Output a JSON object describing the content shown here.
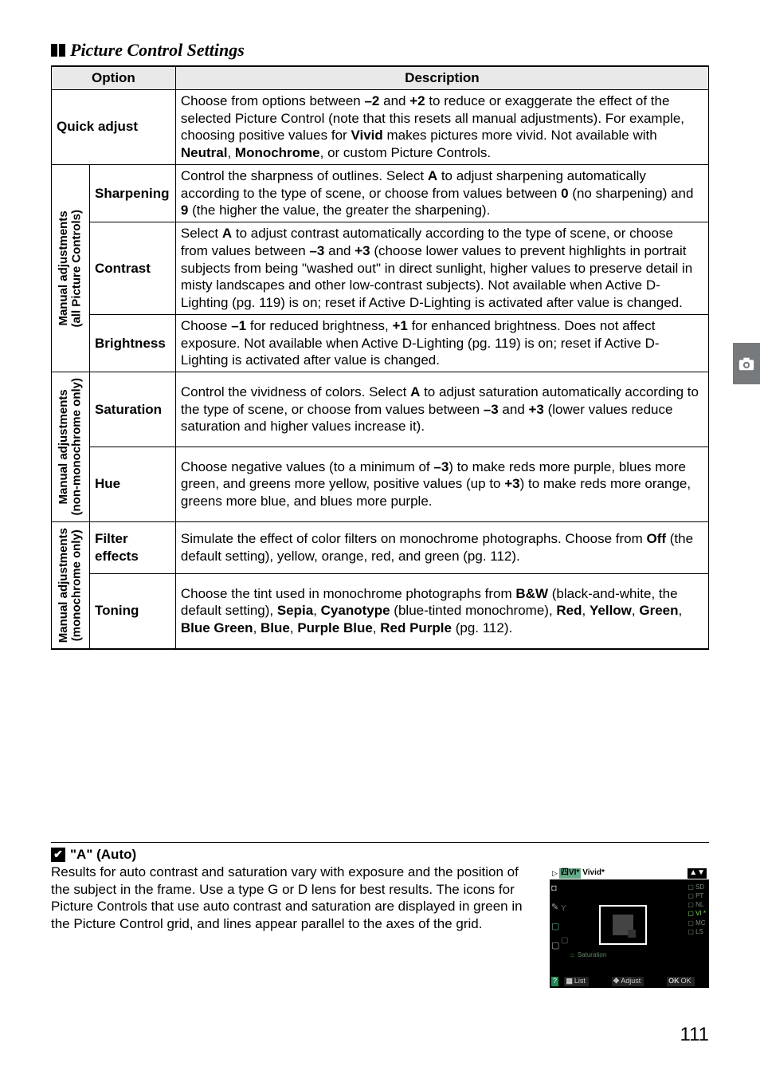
{
  "section_title": "Picture Control Settings",
  "headers": {
    "option": "Option",
    "description": "Description"
  },
  "quick_adjust": {
    "label": "Quick adjust",
    "desc": "Choose from options between <b>–2</b> and <b>+2</b> to reduce or exaggerate the effect of the selected Picture Control (note that this resets all manual adjustments). For example, choosing positive values for <b>Vivid</b> makes pictures more vivid. Not available with <b>Neutral</b>, <b>Monochrome</b>, or custom Picture Controls."
  },
  "group_all": {
    "label": "Manual adjustments\n(all Picture Controls)",
    "sharpening": {
      "label": "Sharpening",
      "desc": "Control the sharpness of outlines.  Select <b>A</b> to adjust sharpening automatically according to the type of scene, or choose from values between <b>0</b> (no sharpening) and <b>9</b> (the higher the value, the greater the sharpening)."
    },
    "contrast": {
      "label": "Contrast",
      "desc": "Select <b>A</b> to adjust contrast automatically according to the type of scene, or choose from values between <b>–3</b> and <b>+3</b> (choose lower values to prevent highlights in portrait subjects from being \"washed out\" in direct sunlight, higher values to preserve detail in misty landscapes and other low-contrast subjects).  Not available when Active D-Lighting (pg. 119) is on; reset if Active D-Lighting is activated after value is changed."
    },
    "brightness": {
      "label": "Brightness",
      "desc": "Choose <b>–1</b> for reduced brightness, <b>+1</b> for enhanced brightness.  Does not affect exposure.  Not available when Active D-Lighting (pg. 119) is on; reset if Active D-Lighting is activated after value is changed."
    }
  },
  "group_nonmono": {
    "label": "Manual adjustments\n(non-monochrome only)",
    "saturation": {
      "label": "Saturation",
      "desc": "Control the vividness of colors.  Select <b>A</b> to adjust saturation automatically according to the type of scene, or choose from values between <b>–3</b> and <b>+3</b> (lower values reduce saturation and higher values increase it)."
    },
    "hue": {
      "label": "Hue",
      "desc": "Choose negative values (to a minimum of <b>–3</b>) to make reds more purple, blues more green, and greens more yellow, positive values (up to <b>+3</b>) to make reds more orange, greens more blue, and blues more purple."
    }
  },
  "group_mono": {
    "label": "Manual adjustments\n(monochrome only)",
    "filter": {
      "label": "Filter effects",
      "desc": "Simulate the effect of color filters on monochrome photographs.  Choose from <b>Off</b> (the default setting), yellow, orange, red, and green (pg. 112)."
    },
    "toning": {
      "label": "Toning",
      "desc": "Choose the tint used in monochrome photographs from <b>B&amp;W</b> (black-and-white, the default setting), <b>Sepia</b>, <b>Cyanotype</b> (blue-tinted monochrome), <b>Red</b>, <b>Yellow</b>, <b>Green</b>, <b>Blue Green</b>, <b>Blue</b>, <b>Purple Blue</b>, <b>Red Purple</b> (pg. 112)."
    }
  },
  "note": {
    "title": "\"A\" (Auto)",
    "text": "Results for auto contrast and saturation vary with exposure and the position of the subject in the frame.  Use a type G or D lens for best results.  The icons for Picture Controls that use auto contrast and saturation are displayed in green in the Picture Control grid, and lines appear parallel to the axes of the grid."
  },
  "lcd": {
    "top_tag": "VI*",
    "top_label": "Vivid*",
    "arrow": "▲▼",
    "right": [
      "SD",
      "PT",
      "NL",
      "VI *",
      "MC",
      "LS"
    ],
    "hl_idx": 3,
    "saturation_label": "Saturation",
    "bottom": {
      "list": "List",
      "adjust": "Adjust",
      "ok": "OK"
    },
    "btn": {
      "grid": "▦",
      "dpad": "✥",
      "ok": "OK"
    }
  },
  "page_number": "111"
}
